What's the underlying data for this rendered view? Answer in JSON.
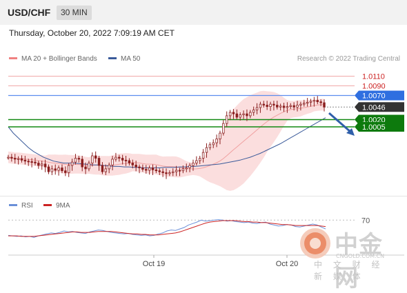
{
  "header": {
    "pair": "USD/CHF",
    "timeframe": "30 MIN"
  },
  "datetime": "Thursday, October 20, 2022 7:09:19 AM CET",
  "legend": {
    "ma_bb": {
      "label": "MA 20 + Bollinger Bands",
      "color": "#f08080"
    },
    "ma50": {
      "label": "MA 50",
      "color": "#3a5a9a"
    }
  },
  "source": "Research © 2022 Trading Central",
  "rsi_legend": {
    "rsi": {
      "label": "RSI",
      "color": "#6a8fd8"
    },
    "ma9": {
      "label": "9MA",
      "color": "#cc2222"
    }
  },
  "watermark": {
    "name": "中金网",
    "url": "CNGOLD.COM.CN",
    "sub": "中 文 财 经 新 媒 体"
  },
  "chart_data": [
    {
      "type": "candlestick",
      "ylim": [
        0.9865,
        1.0125
      ],
      "x_ticks": [
        "Oct 19",
        "Oct 20"
      ],
      "levels": [
        {
          "value": 1.011,
          "label": "1.0110",
          "kind": "resistance"
        },
        {
          "value": 1.009,
          "label": "1.0090",
          "kind": "resistance"
        },
        {
          "value": 1.007,
          "label": "1.0070",
          "kind": "pivot"
        },
        {
          "value": 1.0046,
          "label": "1.0046",
          "kind": "last_price"
        },
        {
          "value": 1.002,
          "label": "1.0020",
          "kind": "target"
        },
        {
          "value": 1.0005,
          "label": "1.0005",
          "kind": "target"
        }
      ],
      "close": [
        0.9942,
        0.994,
        0.9938,
        0.9939,
        0.9936,
        0.9934,
        0.9933,
        0.9932,
        0.993,
        0.9925,
        0.9928,
        0.9922,
        0.9912,
        0.9918,
        0.9915,
        0.992,
        0.9914,
        0.991,
        0.9925,
        0.9932,
        0.994,
        0.9938,
        0.9922,
        0.9918,
        0.993,
        0.9945,
        0.994,
        0.9925,
        0.9912,
        0.9918,
        0.9926,
        0.9938,
        0.9942,
        0.994,
        0.9936,
        0.9935,
        0.993,
        0.9926,
        0.9922,
        0.992,
        0.9917,
        0.9915,
        0.992,
        0.9916,
        0.9914,
        0.9912,
        0.991,
        0.9908,
        0.991,
        0.9912,
        0.9915,
        0.9914,
        0.9918,
        0.992,
        0.9925,
        0.993,
        0.9935,
        0.994,
        0.9952,
        0.9962,
        0.9968,
        0.9972,
        0.998,
        0.9992,
        1.0012,
        1.0028,
        1.0035,
        1.0032,
        1.0025,
        1.003,
        1.0032,
        1.0028,
        1.0035,
        1.004,
        1.0045,
        1.0052,
        1.005,
        1.0047,
        1.0052,
        1.005,
        1.0046,
        1.0048,
        1.0045,
        1.0047,
        1.0049,
        1.0046,
        1.005,
        1.0052,
        1.0054,
        1.0056,
        1.0058,
        1.006,
        1.0057,
        1.0055,
        1.0046
      ],
      "ma50": [
        1.0005,
        0.9992,
        0.9982,
        0.9972,
        0.9962,
        0.9954,
        0.9948,
        0.9942,
        0.9938,
        0.9934,
        0.9932,
        0.993,
        0.993,
        0.993,
        0.9929,
        0.9928,
        0.9927,
        0.9926,
        0.9926,
        0.9925,
        0.9924,
        0.9923,
        0.9923,
        0.9922,
        0.9922,
        0.9921,
        0.9921,
        0.992,
        0.992,
        0.992,
        0.992,
        0.9921,
        0.9921,
        0.9921,
        0.9922,
        0.9922,
        0.9923,
        0.9923,
        0.9924,
        0.9925,
        0.9926,
        0.9927,
        0.9928,
        0.993,
        0.9932,
        0.9934,
        0.9936,
        0.9939,
        0.9942,
        0.9946,
        0.995,
        0.9955,
        0.996,
        0.9965,
        0.997,
        0.9976,
        0.9982,
        0.9988,
        0.9994,
        1.0,
        1.0006,
        1.0012,
        1.0018,
        1.0024
      ]
    },
    {
      "type": "line",
      "title": "RSI",
      "ylim": [
        20,
        90
      ],
      "y_ticks": [
        70
      ],
      "series": [
        {
          "name": "RSI",
          "values": [
            39,
            38,
            37,
            38,
            36,
            37,
            35,
            38,
            40,
            42,
            44,
            43,
            45,
            48,
            46,
            47,
            45,
            44,
            43,
            46,
            48,
            50,
            49,
            47,
            45,
            44,
            43,
            42,
            43,
            41,
            40,
            39,
            40,
            38,
            39,
            42,
            44,
            48,
            50,
            49,
            52,
            55,
            60,
            63,
            66,
            70,
            68,
            69,
            70,
            71,
            70,
            68,
            69,
            67,
            66,
            65,
            66,
            64,
            63,
            65,
            66,
            62,
            60,
            58,
            59,
            61,
            60,
            57,
            56,
            58,
            60,
            62,
            60,
            56,
            52
          ]
        },
        {
          "name": "9MA",
          "values": [
            38,
            38,
            38,
            37,
            37,
            37,
            37,
            38,
            39,
            40,
            41,
            42,
            43,
            44,
            45,
            46,
            46,
            45,
            45,
            45,
            46,
            47,
            47,
            47,
            47,
            46,
            45,
            44,
            43,
            42,
            42,
            41,
            41,
            40,
            40,
            40,
            41,
            42,
            43,
            44,
            46,
            49,
            52,
            55,
            58,
            61,
            64,
            66,
            67,
            68,
            69,
            69,
            69,
            69,
            68,
            67,
            67,
            66,
            66,
            65,
            65,
            64,
            63,
            62,
            61,
            61,
            60,
            59,
            59,
            59,
            59,
            59,
            59,
            58,
            57
          ]
        }
      ]
    }
  ]
}
